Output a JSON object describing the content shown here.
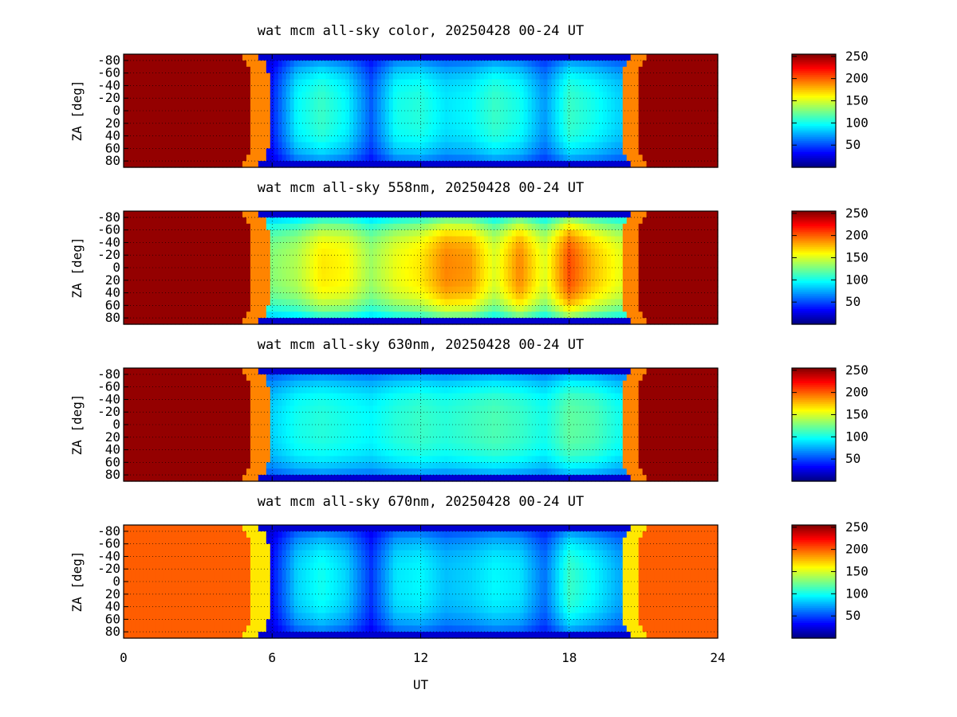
{
  "figure": {
    "x_axis_label": "UT",
    "y_axis_label": "ZA [deg]",
    "x_ticks": [
      "0",
      "6",
      "12",
      "18",
      "24"
    ]
  },
  "chart_data": [
    {
      "type": "heatmap",
      "title": "wat mcm all-sky color, 20250428 00-24 UT",
      "xlabel": "UT",
      "ylabel": "ZA [deg]",
      "xlim": [
        0,
        24
      ],
      "ylim": [
        -90,
        90
      ],
      "x_ticks": [
        0,
        6,
        12,
        18,
        24
      ],
      "y_ticks": [
        "-80",
        "-60",
        "-40",
        "-20",
        "0",
        "20",
        "40",
        "60",
        "80"
      ],
      "y_tick_values": [
        -80,
        -60,
        -40,
        -20,
        0,
        20,
        40,
        60,
        80
      ],
      "grid": true,
      "colorscale": "jet",
      "colorbar": {
        "range": [
          0,
          255
        ],
        "ticks": [
          "50",
          "100",
          "150",
          "200",
          "250"
        ],
        "tick_values": [
          50,
          100,
          150,
          200,
          250
        ]
      },
      "day_value": 250,
      "night_start_ut": 5.6,
      "night_end_ut": 20.4,
      "night_profile": {
        "ut": [
          6,
          7,
          8,
          9,
          10,
          11,
          12,
          13,
          14,
          15,
          16,
          17,
          18,
          19,
          20
        ],
        "value": [
          40,
          95,
          110,
          95,
          55,
          100,
          105,
          90,
          95,
          110,
          100,
          70,
          110,
          100,
          85
        ]
      }
    },
    {
      "type": "heatmap",
      "title": "wat mcm all-sky 558nm, 20250428 00-24 UT",
      "xlabel": "UT",
      "ylabel": "ZA [deg]",
      "xlim": [
        0,
        24
      ],
      "ylim": [
        -90,
        90
      ],
      "x_ticks": [
        0,
        6,
        12,
        18,
        24
      ],
      "y_ticks": [
        "-80",
        "-60",
        "-40",
        "-20",
        "0",
        "20",
        "40",
        "60",
        "80"
      ],
      "y_tick_values": [
        -80,
        -60,
        -40,
        -20,
        0,
        20,
        40,
        60,
        80
      ],
      "grid": true,
      "colorscale": "jet",
      "colorbar": {
        "range": [
          0,
          255
        ],
        "ticks": [
          "50",
          "100",
          "150",
          "200",
          "250"
        ],
        "tick_values": [
          50,
          100,
          150,
          200,
          250
        ]
      },
      "day_value": 250,
      "night_start_ut": 5.6,
      "night_end_ut": 20.4,
      "night_profile": {
        "ut": [
          6,
          7,
          8,
          9,
          10,
          11,
          12,
          13,
          14,
          15,
          16,
          17,
          18,
          19,
          20
        ],
        "value": [
          130,
          140,
          165,
          160,
          135,
          155,
          165,
          190,
          185,
          150,
          190,
          150,
          205,
          175,
          155
        ]
      }
    },
    {
      "type": "heatmap",
      "title": "wat mcm all-sky 630nm, 20250428 00-24 UT",
      "xlabel": "UT",
      "ylabel": "ZA [deg]",
      "xlim": [
        0,
        24
      ],
      "ylim": [
        -90,
        90
      ],
      "x_ticks": [
        0,
        6,
        12,
        18,
        24
      ],
      "y_ticks": [
        "-80",
        "-60",
        "-40",
        "-20",
        "0",
        "20",
        "40",
        "60",
        "80"
      ],
      "y_tick_values": [
        -80,
        -60,
        -40,
        -20,
        0,
        20,
        40,
        60,
        80
      ],
      "grid": true,
      "colorscale": "jet",
      "colorbar": {
        "range": [
          0,
          255
        ],
        "ticks": [
          "50",
          "100",
          "150",
          "200",
          "250"
        ],
        "tick_values": [
          50,
          100,
          150,
          200,
          250
        ]
      },
      "day_value": 250,
      "night_start_ut": 5.6,
      "night_end_ut": 20.4,
      "night_profile": {
        "ut": [
          6,
          7,
          8,
          9,
          10,
          11,
          12,
          13,
          14,
          15,
          16,
          17,
          18,
          19,
          20
        ],
        "value": [
          85,
          100,
          105,
          100,
          95,
          105,
          110,
          105,
          110,
          115,
          110,
          100,
          120,
          115,
          100
        ]
      }
    },
    {
      "type": "heatmap",
      "title": "wat mcm all-sky 670nm, 20250428 00-24 UT",
      "xlabel": "UT",
      "ylabel": "ZA [deg]",
      "xlim": [
        0,
        24
      ],
      "ylim": [
        -90,
        90
      ],
      "x_ticks": [
        0,
        6,
        12,
        18,
        24
      ],
      "y_ticks": [
        "-80",
        "-60",
        "-40",
        "-20",
        "0",
        "20",
        "40",
        "60",
        "80"
      ],
      "y_tick_values": [
        -80,
        -60,
        -40,
        -20,
        0,
        20,
        40,
        60,
        80
      ],
      "grid": true,
      "colorscale": "jet",
      "colorbar": {
        "range": [
          0,
          255
        ],
        "ticks": [
          "50",
          "100",
          "150",
          "200",
          "250"
        ],
        "tick_values": [
          50,
          100,
          150,
          200,
          250
        ]
      },
      "day_value": 200,
      "night_start_ut": 5.6,
      "night_end_ut": 20.4,
      "night_profile": {
        "ut": [
          6,
          7,
          8,
          9,
          10,
          11,
          12,
          13,
          14,
          15,
          16,
          17,
          18,
          19,
          20
        ],
        "value": [
          35,
          85,
          100,
          85,
          45,
          90,
          95,
          80,
          85,
          95,
          90,
          60,
          110,
          95,
          75
        ]
      }
    }
  ]
}
